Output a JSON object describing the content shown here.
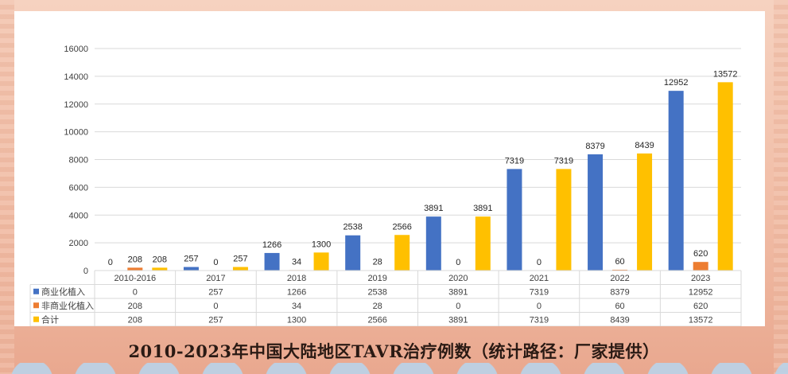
{
  "caption": "2010-2023年中国大陆地区TAVR治疗例数（统计路径：厂家提供）",
  "chart_data": {
    "type": "bar",
    "title": "2010-2023年中国大陆地区TAVR治疗例数（统计路径：厂家提供）",
    "categories": [
      "2010-2016",
      "2017",
      "2018",
      "2019",
      "2020",
      "2021",
      "2022",
      "2023"
    ],
    "series": [
      {
        "name": "商业化植入",
        "color": "#4472c4",
        "values": [
          0,
          257,
          1266,
          2538,
          3891,
          7319,
          8379,
          12952
        ]
      },
      {
        "name": "非商业化植入",
        "color": "#ed7d31",
        "values": [
          208,
          0,
          34,
          28,
          0,
          0,
          60,
          620
        ]
      },
      {
        "name": "合计",
        "color": "#ffc000",
        "values": [
          208,
          257,
          1300,
          2566,
          3891,
          7319,
          8439,
          13572
        ]
      }
    ],
    "yticks": [
      0,
      2000,
      4000,
      6000,
      8000,
      10000,
      12000,
      14000,
      16000
    ],
    "ylim": [
      0,
      16000
    ],
    "grid": true,
    "legend": "data-table-below",
    "xlabel": "",
    "ylabel": ""
  }
}
